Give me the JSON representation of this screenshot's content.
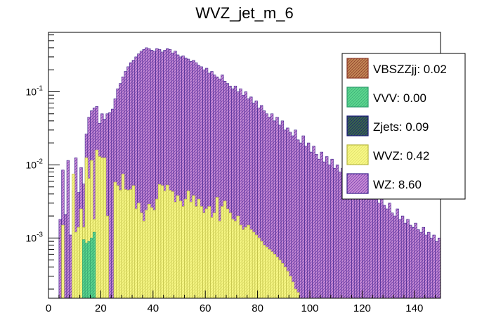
{
  "chart_data": {
    "type": "histogram",
    "title": "WVZ_jet_m_6",
    "xlabel": "",
    "ylabel": "",
    "xlim": [
      0,
      150
    ],
    "ylim": [
      0.00015,
      0.65
    ],
    "yscale": "log",
    "bin_width": 1,
    "x_ticks": [
      0,
      20,
      40,
      60,
      80,
      100,
      120,
      140
    ],
    "y_ticks": [
      {
        "value": 0.1,
        "base": "10",
        "exp": "-1"
      },
      {
        "value": 0.01,
        "base": "10",
        "exp": "-2"
      },
      {
        "value": 0.001,
        "base": "10",
        "exp": "-3"
      }
    ],
    "legend": [
      {
        "name": "VBSZZjj",
        "label": "VBSZZjj: 0.02",
        "fill": "#c58a57",
        "edge": "#8b3a2a"
      },
      {
        "name": "VVV",
        "label": "VVV: 0.00",
        "fill": "#5cd68e",
        "edge": "#2e9e6e"
      },
      {
        "name": "Zjets",
        "label": "Zjets: 0.09",
        "fill": "#3a6b46",
        "edge": "#1a1a7a"
      },
      {
        "name": "WVZ",
        "label": "WVZ: 0.42",
        "fill": "#f7f785",
        "edge": "#b8b840"
      },
      {
        "name": "WZ",
        "label": "WZ: 8.60",
        "fill": "#c98fd6",
        "edge": "#3a1f8a"
      }
    ],
    "series": [
      {
        "name": "WZ",
        "note": "stacked total height per 1-unit bin",
        "x_start": 0,
        "values": [
          0,
          0,
          0,
          0,
          0.0018,
          0.0085,
          0.0021,
          0.0115,
          0.0011,
          0.0045,
          0.0125,
          0.0042,
          0.0092,
          0.0055,
          0.0265,
          0.045,
          0.055,
          0.06,
          0.063,
          0.037,
          0.05,
          0.042,
          0.05,
          0.052,
          0.058,
          0.08,
          0.11,
          0.13,
          0.16,
          0.19,
          0.22,
          0.25,
          0.27,
          0.3,
          0.33,
          0.36,
          0.38,
          0.4,
          0.39,
          0.37,
          0.36,
          0.39,
          0.38,
          0.35,
          0.37,
          0.39,
          0.38,
          0.34,
          0.36,
          0.32,
          0.3,
          0.31,
          0.29,
          0.28,
          0.26,
          0.27,
          0.25,
          0.23,
          0.22,
          0.2,
          0.21,
          0.18,
          0.19,
          0.17,
          0.16,
          0.15,
          0.17,
          0.14,
          0.13,
          0.12,
          0.11,
          0.12,
          0.1,
          0.11,
          0.09,
          0.1,
          0.08,
          0.085,
          0.07,
          0.075,
          0.06,
          0.065,
          0.055,
          0.05,
          0.045,
          0.05,
          0.04,
          0.045,
          0.035,
          0.04,
          0.03,
          0.032,
          0.028,
          0.025,
          0.03,
          0.022,
          0.02,
          0.025,
          0.018,
          0.02,
          0.015,
          0.018,
          0.014,
          0.012,
          0.015,
          0.011,
          0.013,
          0.01,
          0.012,
          0.009,
          0.01,
          0.008,
          0.009,
          0.0075,
          0.007,
          0.006,
          0.0065,
          0.0055,
          0.005,
          0.006,
          0.0045,
          0.005,
          0.004,
          0.0045,
          0.0035,
          0.004,
          0.003,
          0.0035,
          0.0028,
          0.0025,
          0.003,
          0.0022,
          0.002,
          0.0025,
          0.0018,
          0.002,
          0.0016,
          0.0018,
          0.0015,
          0.0014,
          0.0016,
          0.0013,
          0.0012,
          0.0014,
          0.0011,
          0.0012,
          0.001,
          0.0011,
          0.0009,
          0.001
        ]
      },
      {
        "name": "WVZ",
        "note": "stacked height of yellow layer per 1-unit bin",
        "x_start": 0,
        "values": [
          0,
          0,
          0,
          0,
          0,
          0.0015,
          0,
          0,
          0,
          0.0075,
          0.0012,
          0.0014,
          0.0025,
          0.0014,
          0.0125,
          0.0065,
          0.0115,
          0.0018,
          0.016,
          0.013,
          0.0125,
          0.0125,
          0.002,
          0,
          0,
          0.0058,
          0.0052,
          0.0045,
          0.0075,
          0.0046,
          0.0045,
          0.0046,
          0.0052,
          0.0025,
          0.003,
          0.0022,
          0.0017,
          0.0024,
          0.0029,
          0.0026,
          0.0024,
          0.0034,
          0.0054,
          0.0052,
          0.0044,
          0.0053,
          0.0045,
          0.0043,
          0.0031,
          0.0038,
          0.0032,
          0.0027,
          0.0034,
          0.0044,
          0.0031,
          0.0038,
          0.0027,
          0.0034,
          0.0027,
          0.0022,
          0.0025,
          0.0027,
          0.0019,
          0.0022,
          0.0036,
          0.0017,
          0.0027,
          0.0032,
          0.0025,
          0.0022,
          0.0018,
          0.0017,
          0.002,
          0.0015,
          0.0013,
          0.0014,
          0.0015,
          0.0013,
          0.0012,
          0.0011,
          0.001,
          0.0009,
          0.0008,
          0.00075,
          0.0007,
          0.00065,
          0.0006,
          0.00055,
          0.0005,
          0.00045,
          0.0004,
          0.00035,
          0.0003,
          0.00025,
          0.0002,
          0.00018,
          0,
          0,
          0,
          0,
          0,
          0,
          0,
          0,
          0,
          0,
          0,
          0,
          0,
          0,
          0,
          0,
          0,
          0,
          0,
          0,
          0,
          0,
          0,
          0,
          0,
          0,
          0,
          0,
          0,
          0,
          0,
          0,
          0,
          0,
          0,
          0,
          0,
          0,
          0,
          0,
          0,
          0,
          0,
          0,
          0,
          0,
          0,
          0,
          0,
          0,
          0,
          0,
          0,
          0
        ]
      },
      {
        "name": "VVV",
        "note": "small visible contributions",
        "points": [
          {
            "x": 13,
            "y": 0.00095
          },
          {
            "x": 14,
            "y": 0.00085
          },
          {
            "x": 15,
            "y": 0.0009
          },
          {
            "x": 16,
            "y": 0.001
          },
          {
            "x": 17,
            "y": 0.0012
          }
        ]
      }
    ]
  }
}
